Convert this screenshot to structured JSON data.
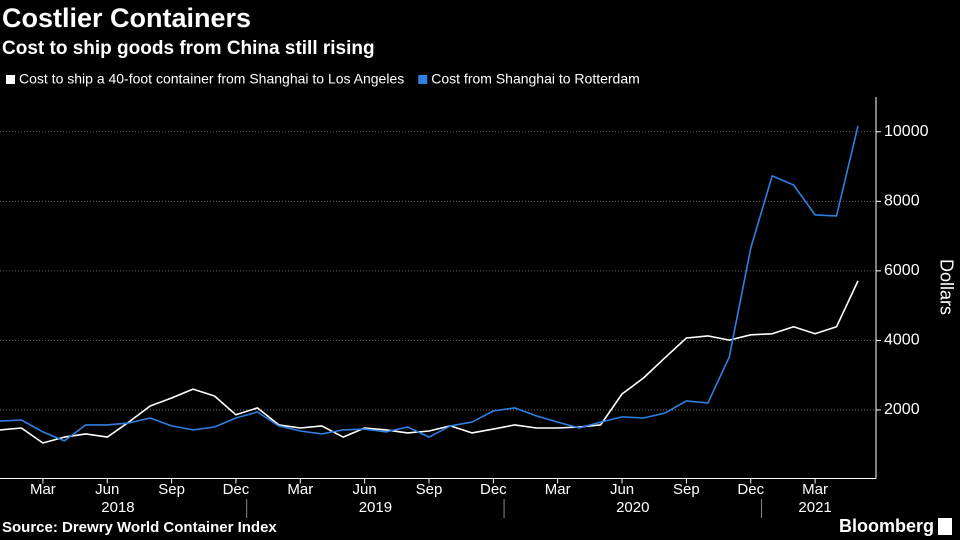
{
  "chart_data": {
    "type": "line",
    "title": "Costlier Containers",
    "subtitle": "Cost to ship goods from China still rising",
    "y_axis_label": "Dollars",
    "source": "Source: Drewry World Container Index",
    "brand": "Bloomberg",
    "categories": [
      null,
      null,
      "Mar",
      null,
      null,
      "Jun",
      null,
      null,
      "Sep",
      null,
      null,
      "Dec",
      null,
      null,
      "Mar",
      null,
      null,
      "Jun",
      null,
      null,
      "Sep",
      null,
      null,
      "Dec",
      null,
      null,
      "Mar",
      null,
      null,
      "Jun",
      null,
      null,
      "Sep",
      null,
      null,
      "Dec",
      null,
      null,
      "Mar",
      null,
      null
    ],
    "year_labels": [
      "2018",
      "2019",
      "2020",
      "2021"
    ],
    "series": [
      {
        "name": "Cost to ship a 40-foot container from Shanghai to Los Angeles",
        "color": "#ffffff",
        "values": [
          1425,
          1480,
          1050,
          1220,
          1310,
          1220,
          1650,
          2115,
          2345,
          2600,
          2400,
          1860,
          2060,
          1570,
          1480,
          1540,
          1220,
          1480,
          1425,
          1340,
          1395,
          1540,
          1340,
          1450,
          1570,
          1480,
          1480,
          1510,
          1570,
          2460,
          2920,
          3500,
          4070,
          4130,
          4010,
          4160,
          4190,
          4390,
          4190,
          4390,
          5710
        ]
      },
      {
        "name": "Cost from Shanghai to Rotterdam",
        "color": "#2f7fe0",
        "values": [
          1680,
          1710,
          1370,
          1110,
          1570,
          1570,
          1625,
          1770,
          1540,
          1425,
          1510,
          1770,
          1940,
          1540,
          1395,
          1310,
          1425,
          1450,
          1370,
          1510,
          1220,
          1540,
          1650,
          1970,
          2060,
          1830,
          1650,
          1480,
          1650,
          1800,
          1770,
          1910,
          2260,
          2200,
          3525,
          6660,
          8730,
          8470,
          7610,
          7580,
          10170
        ]
      }
    ],
    "ylim": [
      0,
      11000
    ],
    "yticks": [
      2000,
      4000,
      6000,
      8000,
      10000
    ],
    "grid": true
  }
}
